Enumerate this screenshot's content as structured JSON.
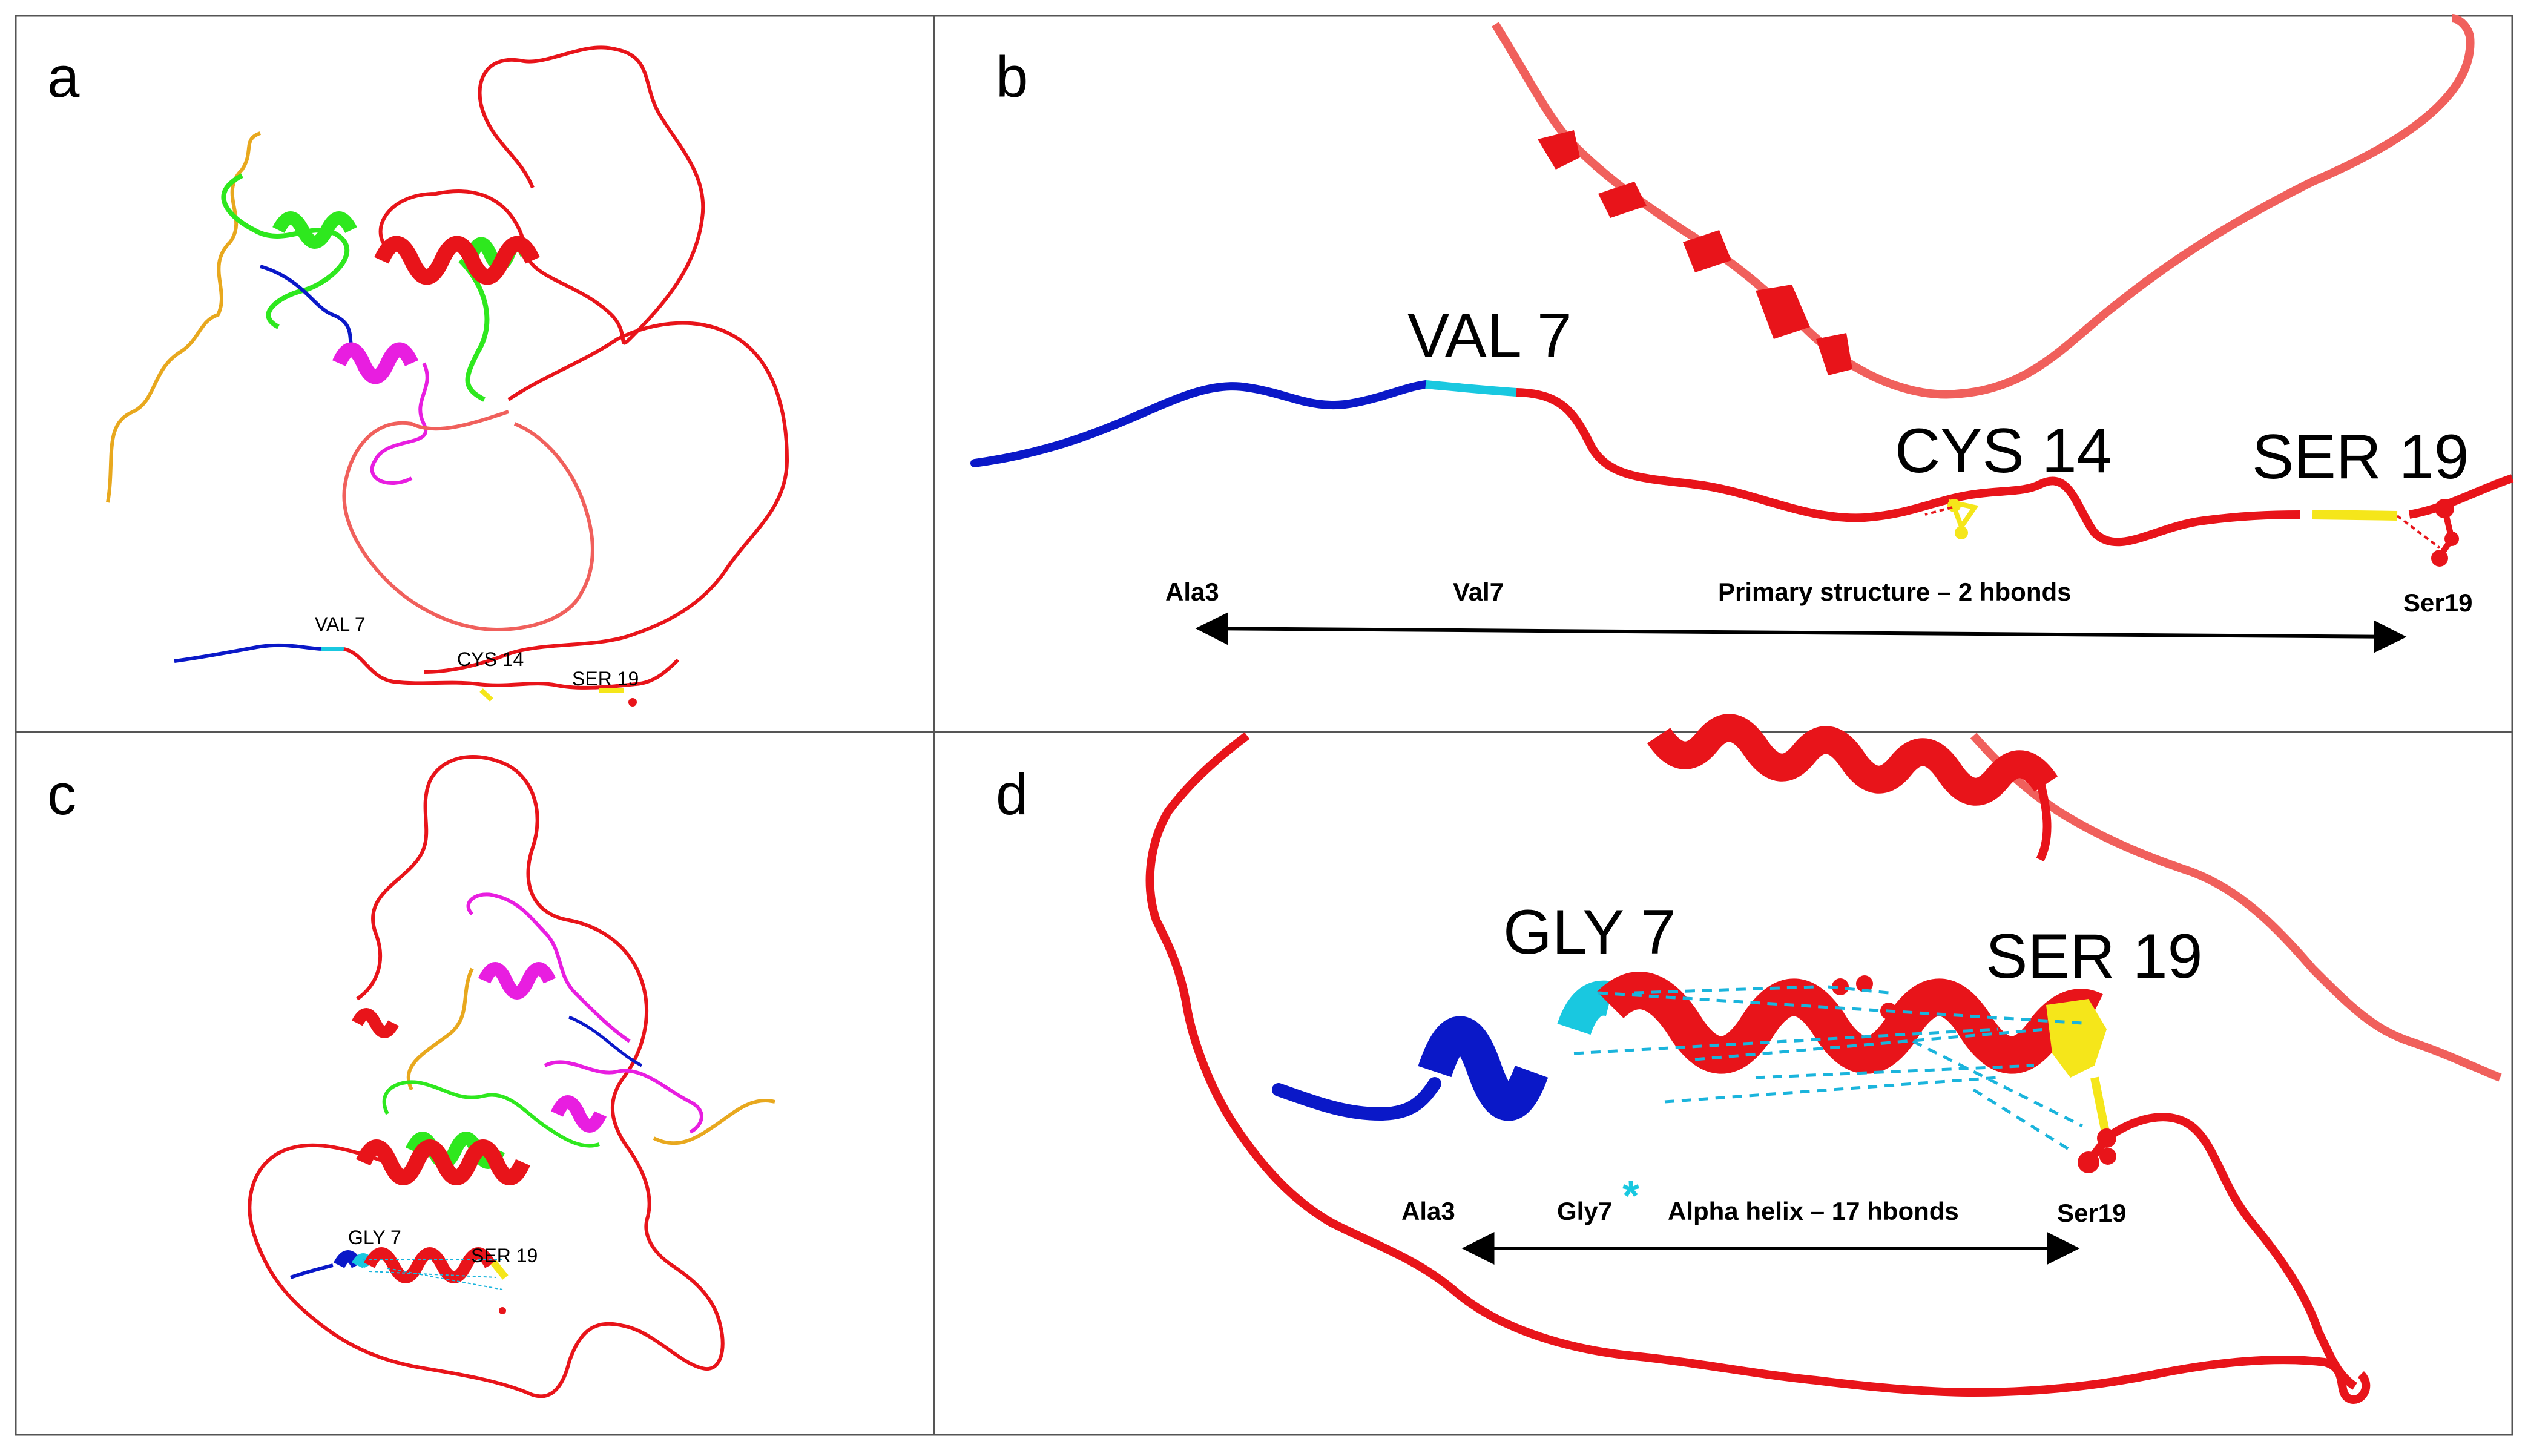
{
  "colors": {
    "red": "#e8141a",
    "light_red": "#f0605c",
    "blue": "#0a18c8",
    "cyan": "#19c8e0",
    "yellow": "#f5e61a",
    "green": "#2ee81e",
    "magenta": "#e81ee0",
    "orange": "#e8a81e",
    "hbond": "#1ab4dc",
    "black": "#000000"
  },
  "panels": {
    "a": {
      "letter": "a",
      "labels": {
        "val7": "VAL 7",
        "cys14": "CYS 14",
        "ser19": "SER 19"
      }
    },
    "b": {
      "letter": "b",
      "labels": {
        "val7": "VAL 7",
        "cys14": "CYS 14",
        "ser19": "SER 19"
      },
      "arrow": {
        "start": "Ala3",
        "mid": "Val7",
        "caption": "Primary structure – 2 hbonds",
        "end": "Ser19"
      }
    },
    "c": {
      "letter": "c",
      "labels": {
        "gly7": "GLY 7",
        "ser19": "SER 19"
      }
    },
    "d": {
      "letter": "d",
      "labels": {
        "gly7": "GLY 7",
        "ser19": "SER 19"
      },
      "arrow": {
        "start": "Ala3",
        "mid": "Gly7",
        "asterisk": "*",
        "caption": "Alpha helix – 17 hbonds",
        "end": "Ser19"
      }
    }
  }
}
